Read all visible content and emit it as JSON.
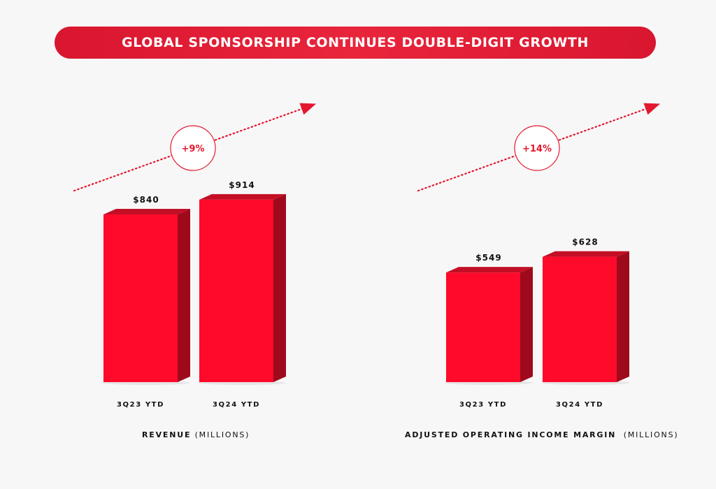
{
  "banner": {
    "title": "GLOBAL SPONSORSHIP CONTINUES DOUBLE-DIGIT GROWTH"
  },
  "colors": {
    "accent": "#e3182f",
    "bar_front": "#ff0a2a",
    "bar_side": "#9e0a1c",
    "bar_top": "#c20f25"
  },
  "chart_data": [
    {
      "type": "bar",
      "categories": [
        "3Q23 YTD",
        "3Q24 YTD"
      ],
      "values": [
        840,
        914
      ],
      "data_labels": [
        "$840",
        "$914"
      ],
      "growth_label": "+9%",
      "xlabel": "REVENUE",
      "xlabel_unit": "(MILLIONS)"
    },
    {
      "type": "bar",
      "categories": [
        "3Q23 YTD",
        "3Q24 YTD"
      ],
      "values": [
        549,
        628
      ],
      "data_labels": [
        "$549",
        "$628"
      ],
      "growth_label": "+14%",
      "xlabel": "ADJUSTED OPERATING INCOME MARGIN",
      "xlabel_unit": "(MILLIONS)"
    }
  ]
}
